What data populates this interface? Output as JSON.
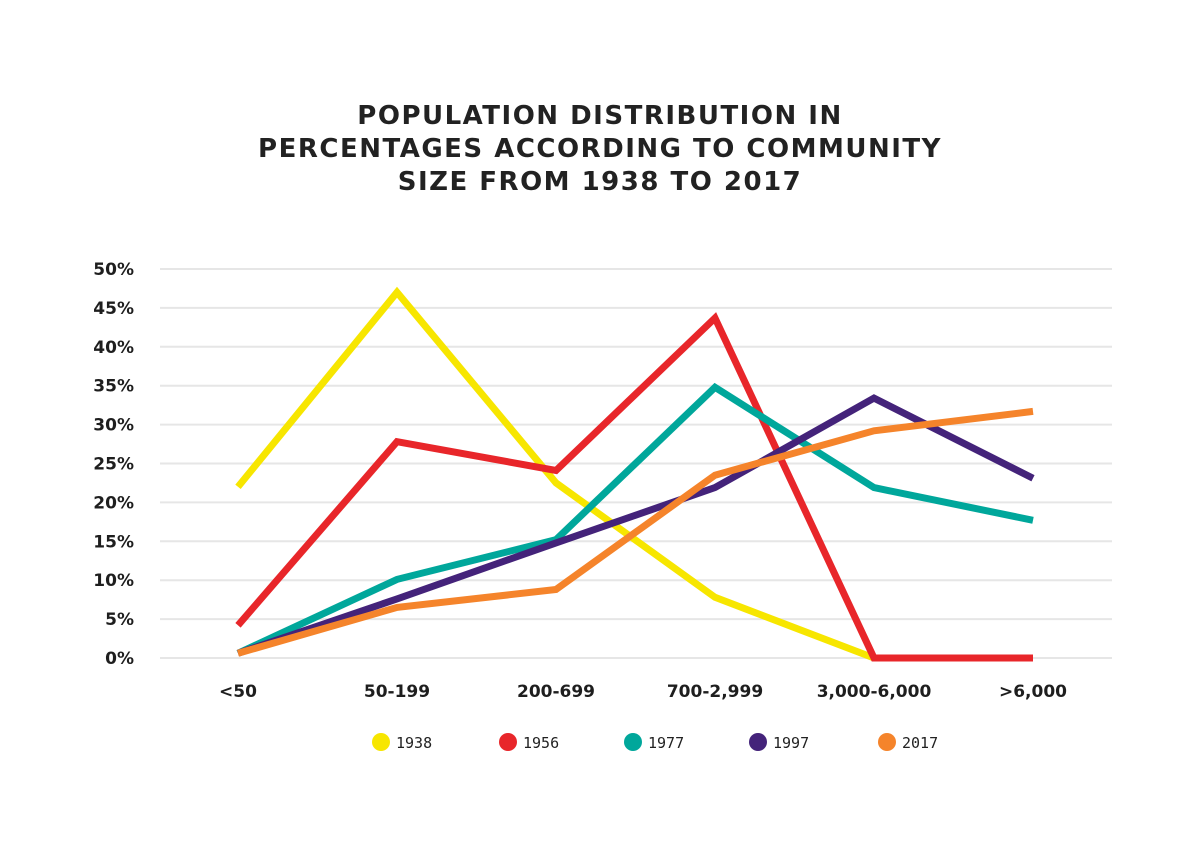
{
  "chart_data": {
    "type": "line",
    "title_lines": [
      "POPULATION DISTRIBUTION IN",
      "PERCENTAGES ACCORDING TO COMMUNITY",
      "SIZE FROM 1938 TO 2017"
    ],
    "categories": [
      "<50",
      "50-199",
      "200-699",
      "700-2,999",
      "3,000-6,000",
      ">6,000"
    ],
    "y_ticks": [
      "0%",
      "5%",
      "10%",
      "15%",
      "20%",
      "25%",
      "30%",
      "35%",
      "40%",
      "45%",
      "50%"
    ],
    "ylim": [
      0,
      50
    ],
    "grid": true,
    "legend_position": "bottom",
    "series": [
      {
        "name": "1938",
        "color": "#f7e600",
        "values": [
          22,
          47,
          22.5,
          7.8,
          0,
          null
        ]
      },
      {
        "name": "1956",
        "color": "#e8262a",
        "values": [
          4.2,
          27.8,
          24.1,
          43.7,
          0,
          0
        ]
      },
      {
        "name": "1977",
        "color": "#00a79b",
        "values": [
          0.6,
          10.1,
          15.2,
          34.8,
          21.9,
          17.7
        ]
      },
      {
        "name": "1997",
        "color": "#44237a",
        "values": [
          0.6,
          7.6,
          14.8,
          21.9,
          33.4,
          23.1
        ]
      },
      {
        "name": "2017",
        "color": "#f5842b",
        "values": [
          0.6,
          6.5,
          8.8,
          23.5,
          29.2,
          31.7
        ]
      }
    ]
  }
}
